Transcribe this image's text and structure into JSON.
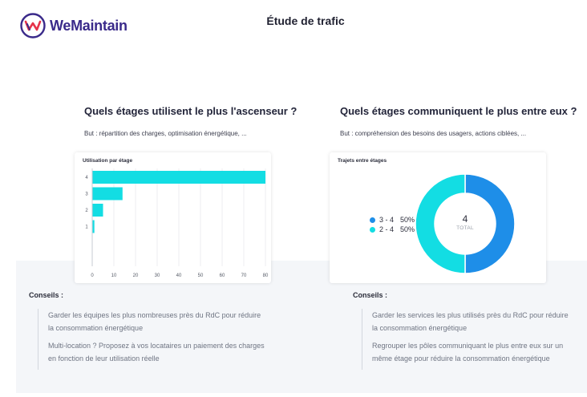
{
  "header": {
    "logo_text": "WeMaintain",
    "title": "Étude de trafic"
  },
  "left": {
    "title": "Quels étages utilisent le plus l'ascenseur ?",
    "subtitle": "But : répartition des charges, optimisation énergétique, ...",
    "card_title": "Utilisation par étage",
    "advice_title": "Conseils :",
    "advice": [
      "Garder les équipes les plus nombreuses près du RdC pour réduire la consommation énergétique",
      "Multi-location ? Proposez à vos locataires un paiement des charges en fonction de leur utilisation réelle"
    ]
  },
  "right": {
    "title": "Quels étages communiquent le plus entre eux ?",
    "subtitle": "But : compréhension des besoins des usagers, actions ciblées, ...",
    "card_title": "Trajets entre étages",
    "center_value": "4",
    "center_label": "TOTAL",
    "advice_title": "Conseils :",
    "advice": [
      "Garder les services les plus utilisés près du RdC pour réduire la consommation énergétique",
      "Regrouper les pôles communiquant le plus entre eux sur un même étage pour réduire la consommation énergétique"
    ]
  },
  "colors": {
    "cyan": "#13dde3",
    "blue": "#1e8ee8",
    "logo_red": "#e6334a",
    "logo_purple": "#3a2a8a"
  },
  "chart_data": [
    {
      "type": "bar",
      "orientation": "horizontal",
      "title": "Utilisation par étage",
      "categories": [
        "4",
        "3",
        "2",
        "1"
      ],
      "values": [
        80,
        14,
        5,
        1
      ],
      "xlim": [
        0,
        80
      ],
      "xticks": [
        0,
        10,
        20,
        30,
        40,
        50,
        60,
        70,
        80
      ],
      "color": "#13dde3",
      "grid": true
    },
    {
      "type": "pie",
      "donut": true,
      "title": "Trajets entre étages",
      "labels": [
        "3 - 4",
        "2 - 4"
      ],
      "values": [
        50,
        50
      ],
      "percent_labels": [
        "50%",
        "50%"
      ],
      "colors": [
        "#1e8ee8",
        "#13dde3"
      ],
      "legend": "left"
    }
  ]
}
